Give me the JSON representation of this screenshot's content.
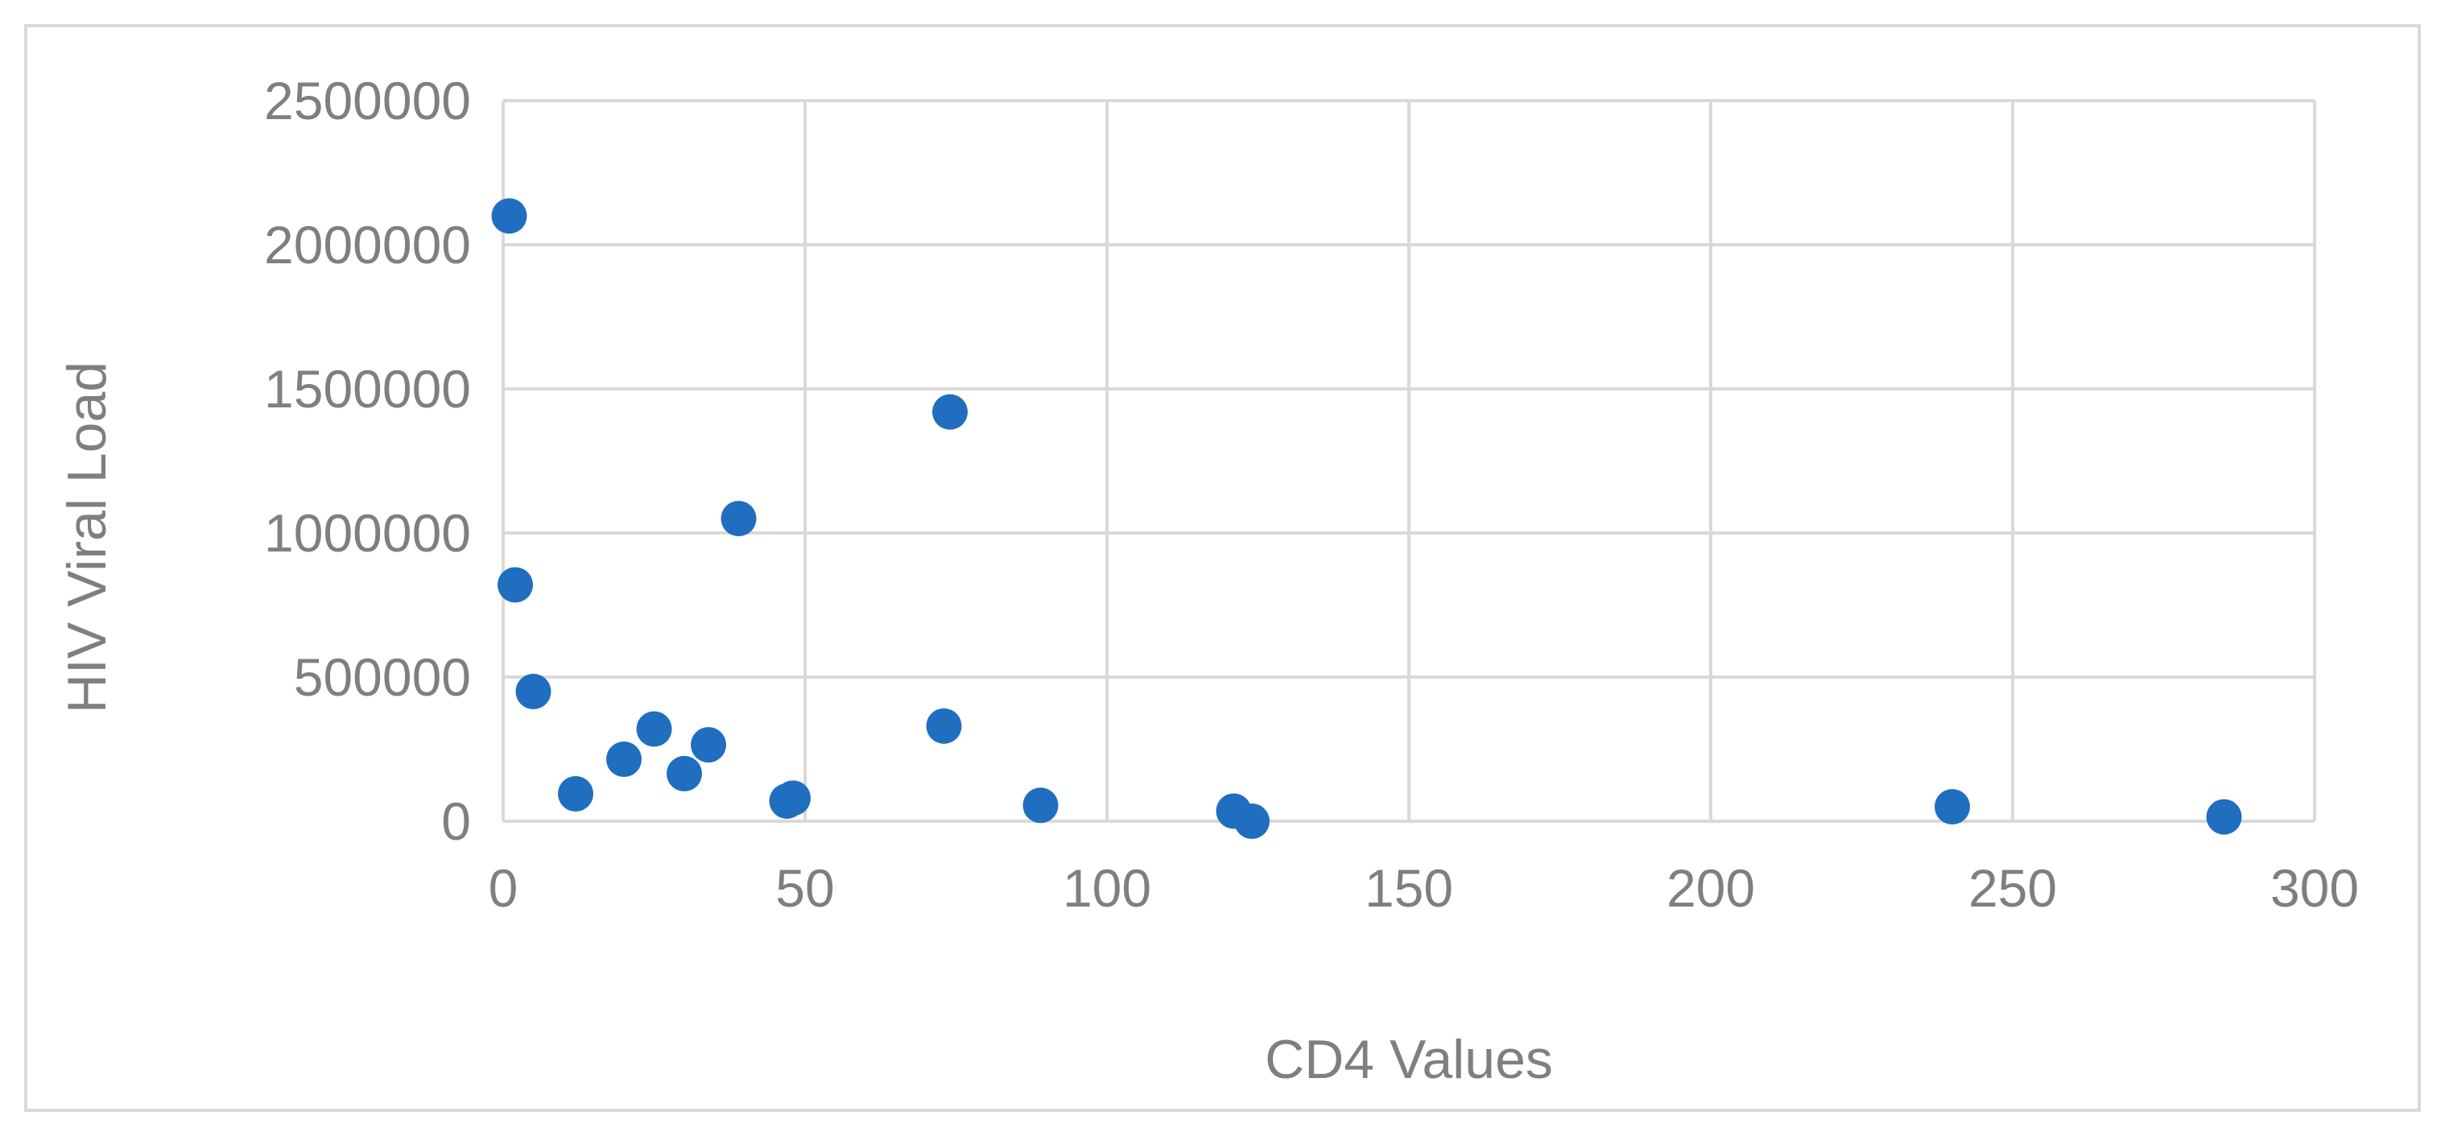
{
  "chart_data": {
    "type": "scatter",
    "title": "",
    "xlabel": "CD4 Values",
    "ylabel": "HIV Viral Load",
    "xlim": [
      0,
      300
    ],
    "ylim": [
      0,
      2500000
    ],
    "x_ticks": [
      0,
      50,
      100,
      150,
      200,
      250,
      300
    ],
    "y_ticks": [
      0,
      500000,
      1000000,
      1500000,
      2000000,
      2500000
    ],
    "x_tick_labels": [
      "0",
      "50",
      "100",
      "150",
      "200",
      "250",
      "300"
    ],
    "y_tick_labels": [
      "0",
      "500000",
      "1000000",
      "1500000",
      "2000000",
      "2500000"
    ],
    "grid": true,
    "legend": "none",
    "marker_color": "#1f6ebf",
    "series": [
      {
        "points": [
          {
            "x": 1,
            "y": 2100000
          },
          {
            "x": 2,
            "y": 820000
          },
          {
            "x": 5,
            "y": 450000
          },
          {
            "x": 12,
            "y": 95000
          },
          {
            "x": 20,
            "y": 215000
          },
          {
            "x": 25,
            "y": 320000
          },
          {
            "x": 30,
            "y": 165000
          },
          {
            "x": 34,
            "y": 265000
          },
          {
            "x": 39,
            "y": 1050000
          },
          {
            "x": 47,
            "y": 70000
          },
          {
            "x": 48,
            "y": 80000
          },
          {
            "x": 73,
            "y": 330000
          },
          {
            "x": 74,
            "y": 1420000
          },
          {
            "x": 89,
            "y": 55000
          },
          {
            "x": 121,
            "y": 35000
          },
          {
            "x": 124,
            "y": 0
          },
          {
            "x": 240,
            "y": 50000
          },
          {
            "x": 285,
            "y": 15000
          }
        ]
      }
    ]
  }
}
